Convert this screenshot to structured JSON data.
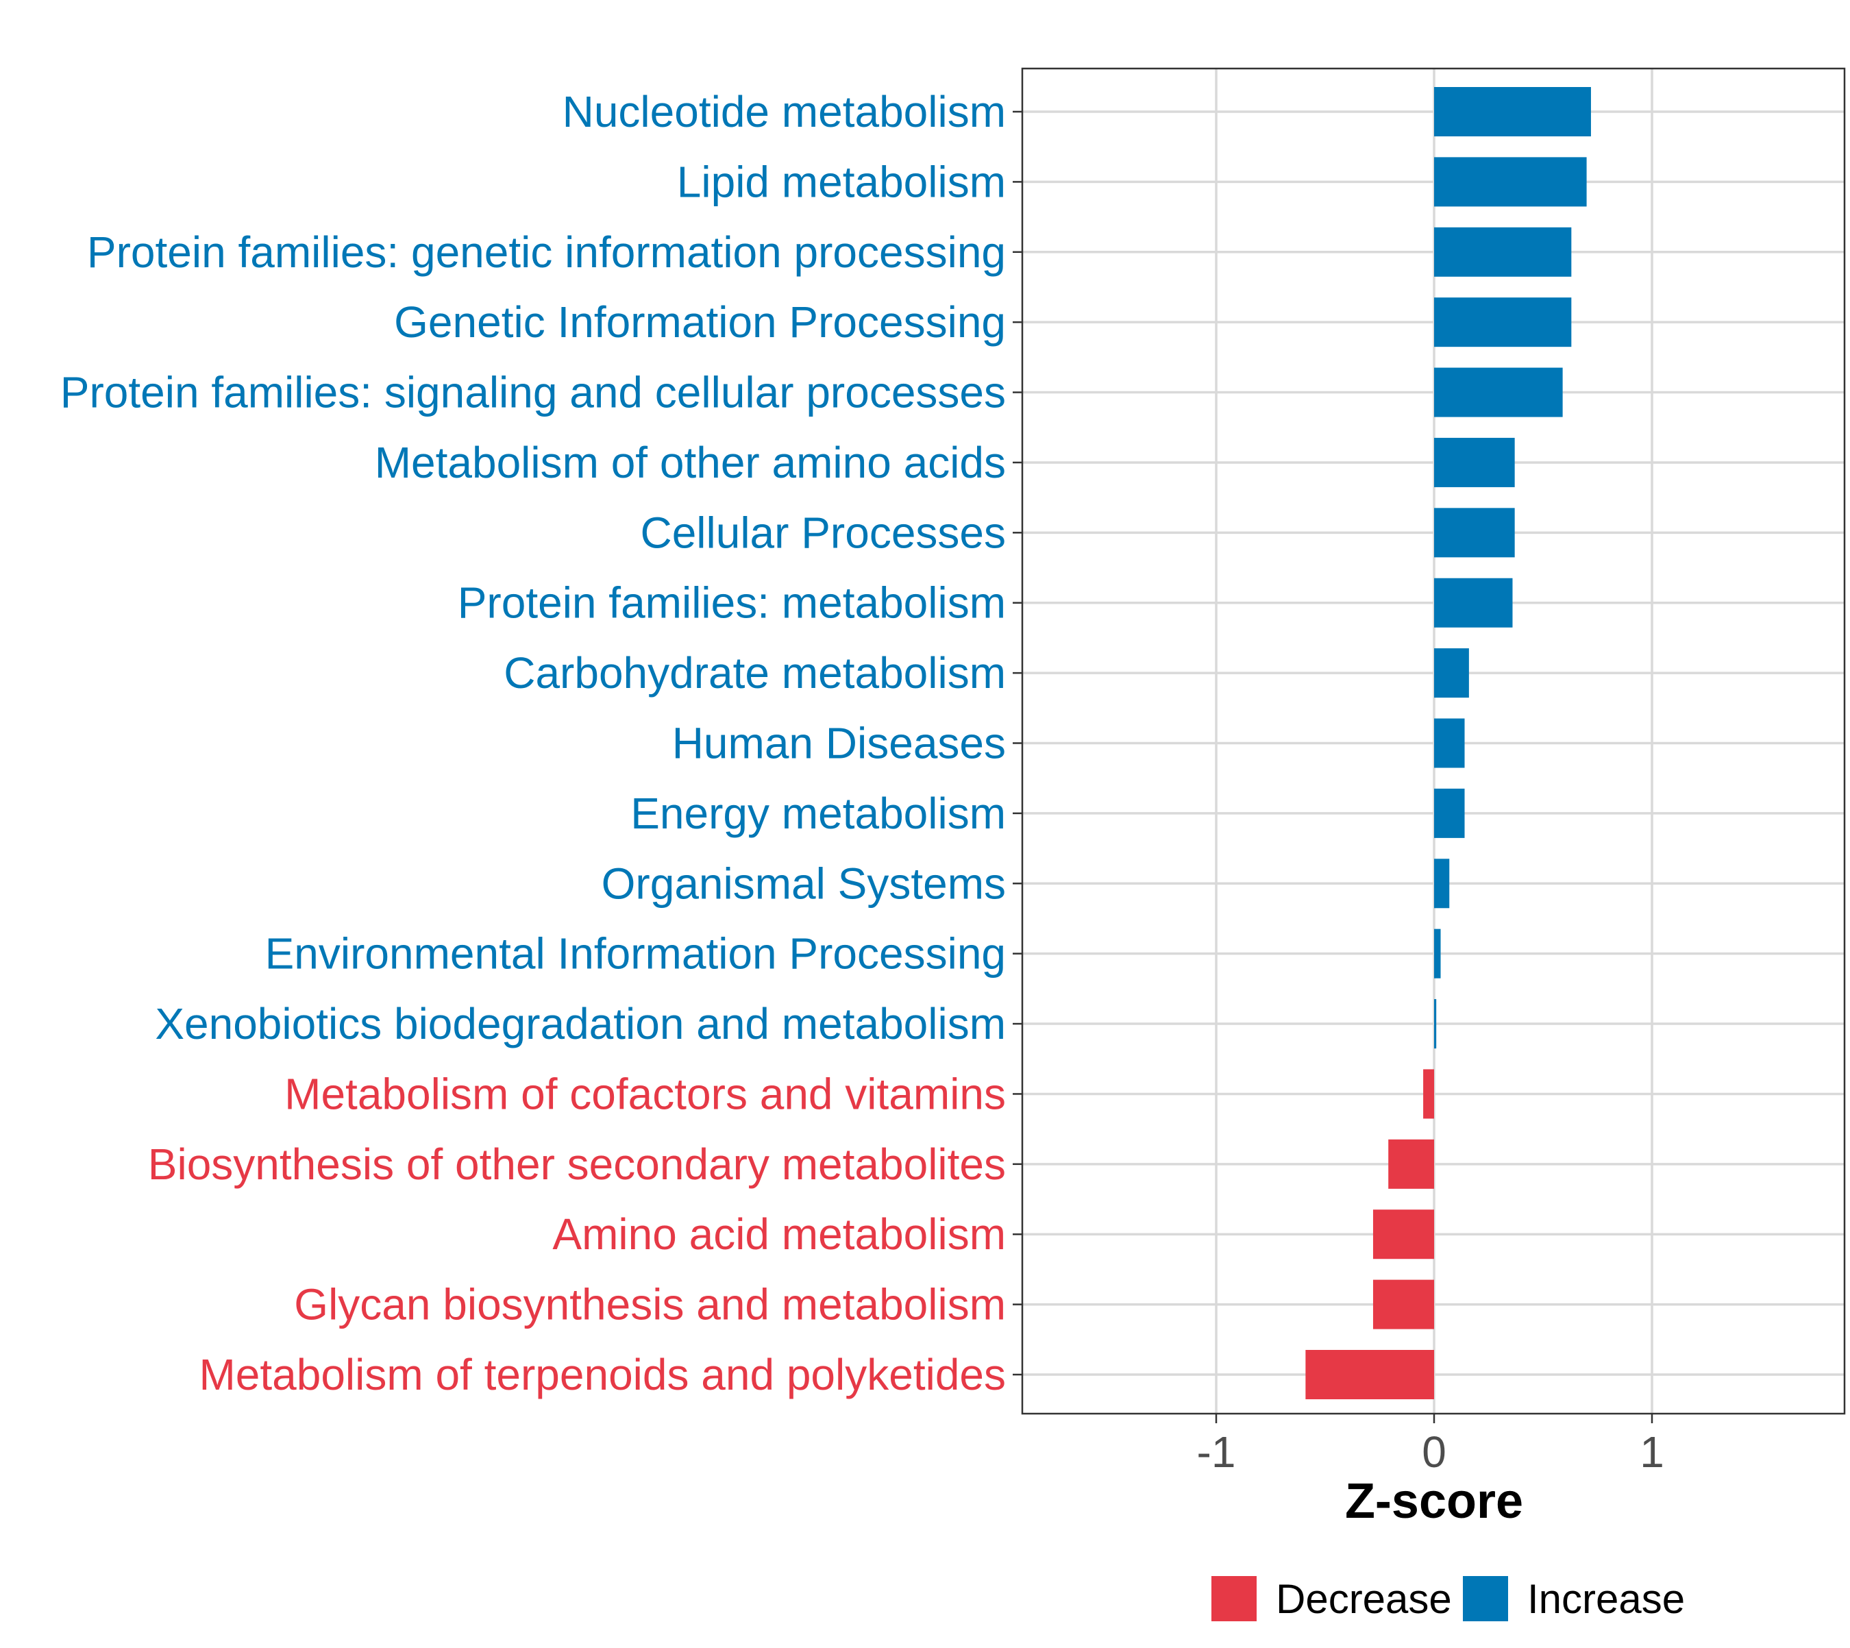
{
  "chart_data": {
    "type": "bar",
    "orientation": "horizontal",
    "title": "",
    "xlabel": "Z-score",
    "ylabel": "",
    "xlim": [
      -1.9,
      1.9
    ],
    "xticks": [
      -1,
      0,
      1
    ],
    "xtick_labels": [
      "-1",
      "0",
      "1"
    ],
    "grid": true,
    "legend_position": "bottom",
    "colors": {
      "Decrease": "#E63946",
      "Increase": "#0077B6"
    },
    "legend": [
      {
        "name": "Decrease",
        "color": "#E63946"
      },
      {
        "name": "Increase",
        "color": "#0077B6"
      }
    ],
    "categories": [
      "Nucleotide metabolism",
      "Lipid metabolism",
      "Protein families: genetic information processing",
      "Genetic Information Processing",
      "Protein families: signaling and cellular processes",
      "Metabolism of other amino acids",
      "Cellular Processes",
      "Protein families: metabolism",
      "Carbohydrate metabolism",
      "Human Diseases",
      "Energy metabolism",
      "Organismal Systems",
      "Environmental Information Processing",
      "Xenobiotics biodegradation and metabolism",
      "Metabolism of cofactors and vitamins",
      "Biosynthesis of other secondary metabolites",
      "Amino acid metabolism",
      "Glycan biosynthesis and metabolism",
      "Metabolism of terpenoids and polyketides"
    ],
    "values": [
      0.72,
      0.7,
      0.63,
      0.63,
      0.59,
      0.37,
      0.37,
      0.36,
      0.16,
      0.14,
      0.14,
      0.07,
      0.03,
      0.01,
      -0.05,
      -0.21,
      -0.28,
      -0.28,
      -0.59
    ],
    "groups": [
      "Increase",
      "Increase",
      "Increase",
      "Increase",
      "Increase",
      "Increase",
      "Increase",
      "Increase",
      "Increase",
      "Increase",
      "Increase",
      "Increase",
      "Increase",
      "Increase",
      "Decrease",
      "Decrease",
      "Decrease",
      "Decrease",
      "Decrease"
    ]
  }
}
